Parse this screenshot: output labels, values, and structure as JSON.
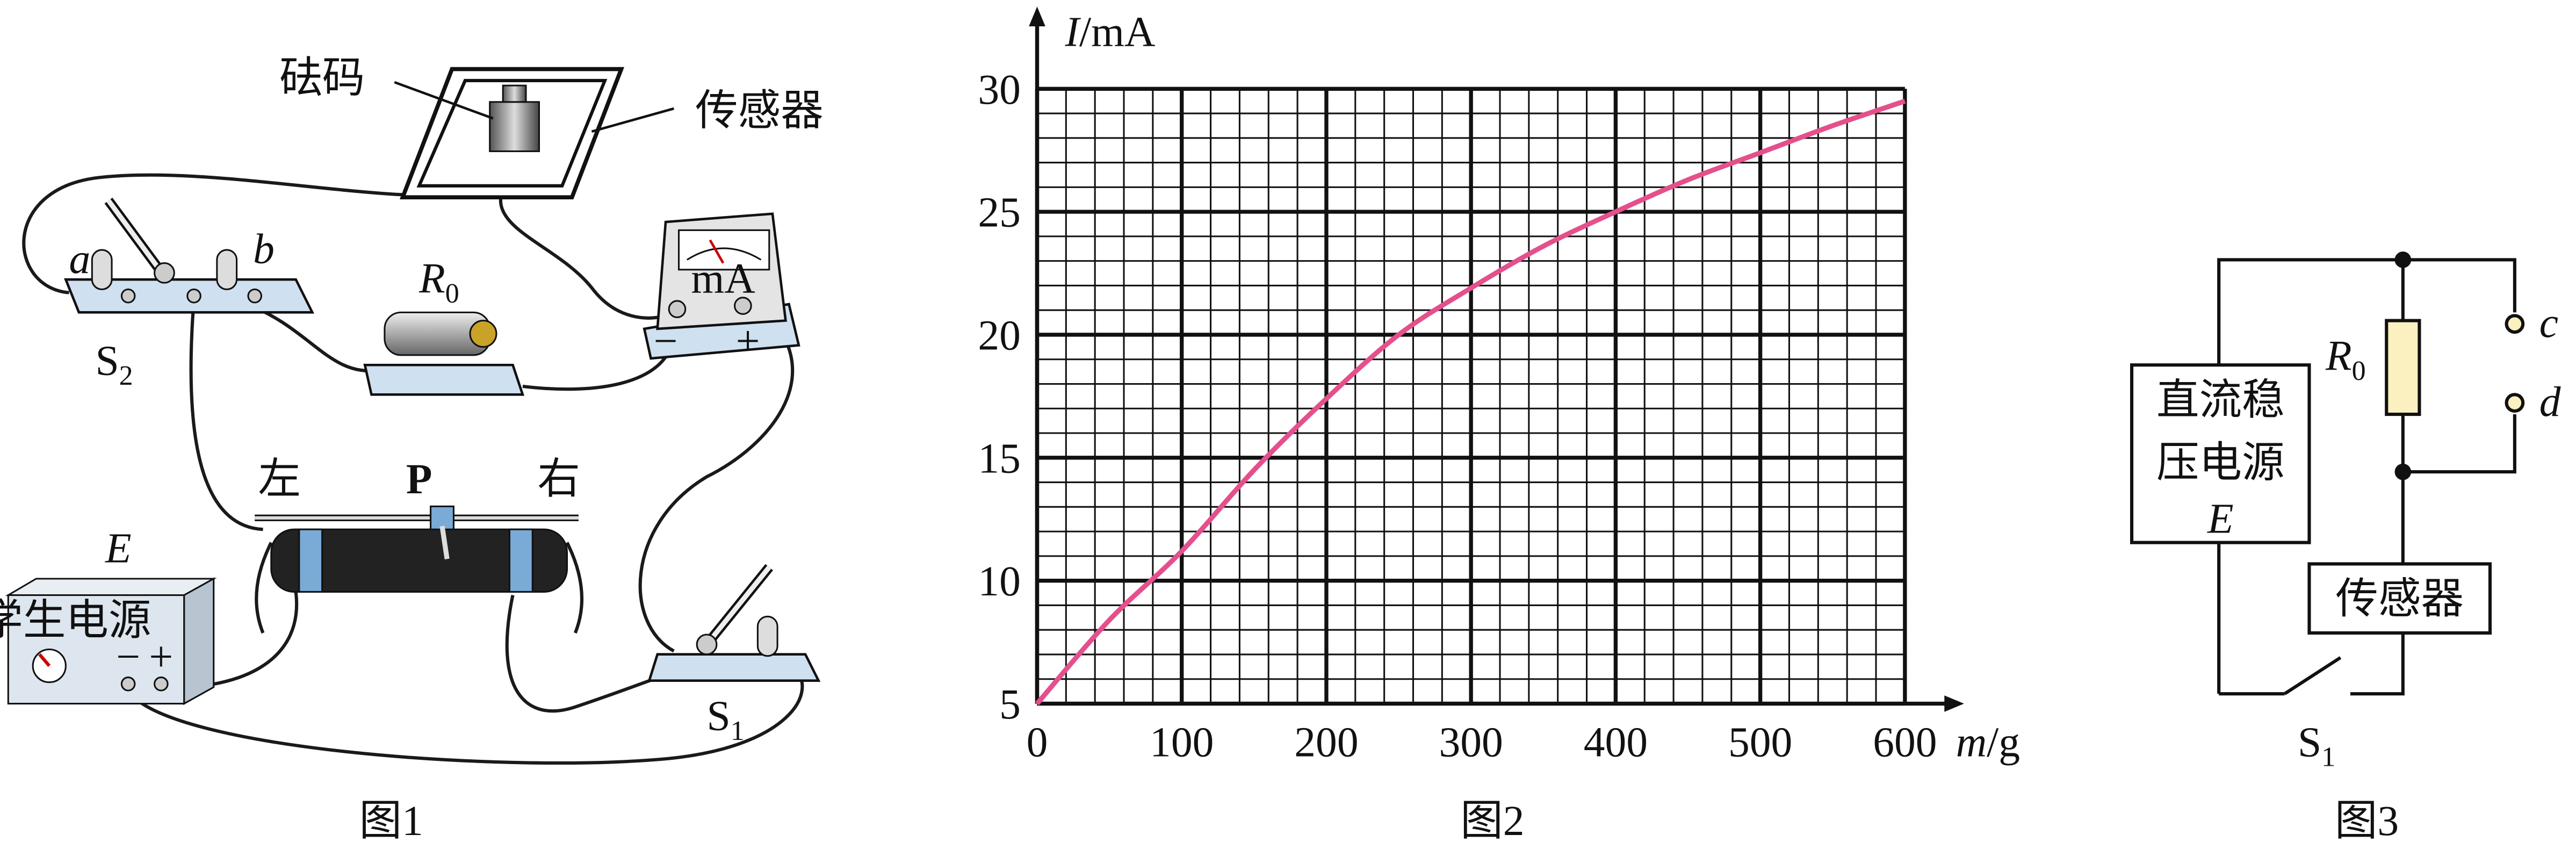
{
  "figure1": {
    "weight_label": "砝码",
    "sensor_label": "传感器",
    "a": "a",
    "b": "b",
    "r0": {
      "main": "R",
      "sub": "0"
    },
    "s2": {
      "main": "S",
      "sub": "2"
    },
    "left": "左",
    "slider": "P",
    "right": "右",
    "source_label": "E",
    "source_name": "学生电源",
    "source_minus": "−",
    "source_plus": "+",
    "meter_unit": "mA",
    "meter_minus": "−",
    "meter_plus": "+",
    "s1": {
      "main": "S",
      "sub": "1"
    },
    "caption": "图1"
  },
  "chart_data": {
    "type": "line",
    "y_label": "I",
    "y_unit": "/mA",
    "x_label": "m",
    "x_unit": "/g",
    "caption": "图2",
    "x": [
      0,
      50,
      100,
      150,
      200,
      250,
      300,
      350,
      400,
      450,
      500,
      550,
      600
    ],
    "series": [
      {
        "color": "#e4508c",
        "values": [
          5,
          8.4,
          11.2,
          14.5,
          17.4,
          20,
          21.9,
          23.6,
          25,
          26.3,
          27.4,
          28.5,
          29.5
        ]
      }
    ],
    "xlim": [
      0,
      600
    ],
    "xticks": [
      0,
      100,
      200,
      300,
      400,
      500,
      600
    ],
    "ylim": [
      5,
      30
    ],
    "yticks": [
      5,
      10,
      15,
      20,
      25,
      30
    ],
    "grid": true
  },
  "figure3": {
    "source_line1": "直流稳",
    "source_line2": "压电源",
    "source_label": "E",
    "r0": {
      "main": "R",
      "sub": "0"
    },
    "c": "c",
    "d": "d",
    "sensor": "传感器",
    "s1": {
      "main": "S",
      "sub": "1"
    },
    "caption": "图3"
  }
}
